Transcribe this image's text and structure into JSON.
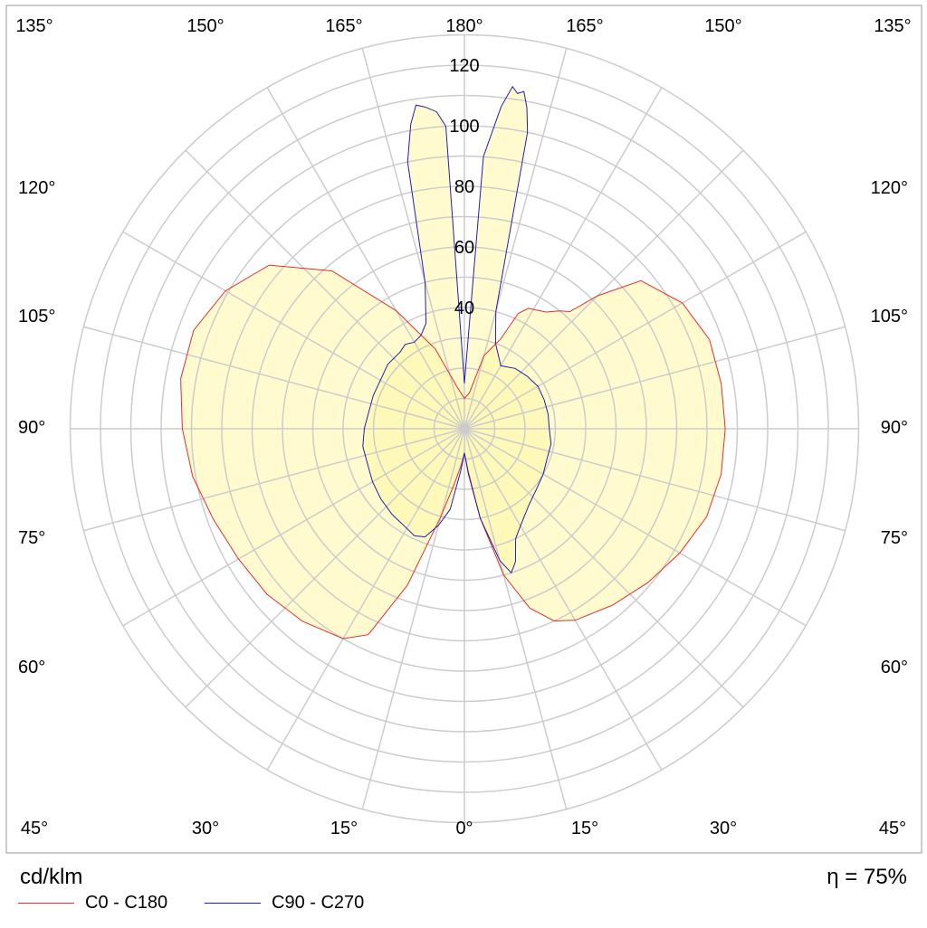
{
  "chart_data": {
    "type": "polar",
    "unit": "cd/klm",
    "efficiency_label": "η = 75%",
    "radial_ticks": [
      "40",
      "60",
      "80",
      "100",
      "120"
    ],
    "radial_tick_values": [
      40,
      60,
      80,
      100,
      120
    ],
    "rlim": [
      0,
      130
    ],
    "angle_labels": {
      "bottom": [
        "45°",
        "30°",
        "15°",
        "0°",
        "15°",
        "30°",
        "45°"
      ],
      "top": [
        "135°",
        "150°",
        "165°",
        "180°",
        "165°",
        "150°",
        "135°"
      ],
      "left": [
        "120°",
        "105°",
        "90°",
        "75°",
        "60°"
      ],
      "right": [
        "120°",
        "105°",
        "90°",
        "75°",
        "60°"
      ]
    },
    "grid": true,
    "series": [
      {
        "name": "C0 - C180",
        "color": "#e03030",
        "left": [
          [
            0,
            8
          ],
          [
            5,
            12
          ],
          [
            10,
            18
          ],
          [
            15,
            30
          ],
          [
            20,
            55
          ],
          [
            25,
            75
          ],
          [
            30,
            80
          ],
          [
            40,
            83
          ],
          [
            50,
            85
          ],
          [
            60,
            86
          ],
          [
            70,
            88
          ],
          [
            80,
            91
          ],
          [
            90,
            93
          ],
          [
            100,
            95
          ],
          [
            110,
            95
          ],
          [
            120,
            91
          ],
          [
            130,
            84
          ],
          [
            140,
            68
          ],
          [
            150,
            45
          ],
          [
            160,
            28
          ],
          [
            170,
            14
          ],
          [
            180,
            10
          ]
        ],
        "right": [
          [
            0,
            8
          ],
          [
            5,
            14
          ],
          [
            10,
            30
          ],
          [
            15,
            50
          ],
          [
            20,
            63
          ],
          [
            25,
            70
          ],
          [
            30,
            73
          ],
          [
            40,
            76
          ],
          [
            50,
            79
          ],
          [
            60,
            82
          ],
          [
            70,
            85
          ],
          [
            80,
            86
          ],
          [
            90,
            86
          ],
          [
            100,
            86
          ],
          [
            110,
            86
          ],
          [
            120,
            83
          ],
          [
            130,
            76
          ],
          [
            135,
            62
          ],
          [
            138,
            52
          ],
          [
            141,
            50
          ],
          [
            145,
            47
          ],
          [
            148,
            46
          ],
          [
            152,
            45
          ],
          [
            155,
            42
          ],
          [
            158,
            32
          ],
          [
            165,
            25
          ],
          [
            172,
            12
          ],
          [
            180,
            10
          ]
        ]
      },
      {
        "name": "C90 - C270",
        "color": "#2020b0",
        "left": [
          [
            0,
            8
          ],
          [
            5,
            14
          ],
          [
            10,
            27
          ],
          [
            15,
            33
          ],
          [
            20,
            38
          ],
          [
            25,
            39
          ],
          [
            30,
            38
          ],
          [
            40,
            37
          ],
          [
            50,
            36
          ],
          [
            60,
            35
          ],
          [
            70,
            34
          ],
          [
            80,
            34
          ],
          [
            90,
            33
          ],
          [
            100,
            32
          ],
          [
            110,
            32
          ],
          [
            120,
            32
          ],
          [
            130,
            33
          ],
          [
            140,
            33
          ],
          [
            145,
            34
          ],
          [
            150,
            33
          ],
          [
            155,
            34
          ],
          [
            160,
            37
          ],
          [
            165,
            50
          ],
          [
            168,
            90
          ],
          [
            170,
            102
          ],
          [
            171.5,
            108
          ],
          [
            173,
            107
          ],
          [
            175,
            105
          ],
          [
            176.5,
            100
          ],
          [
            180,
            15
          ]
        ],
        "right": [
          [
            0,
            8
          ],
          [
            5,
            15
          ],
          [
            10,
            30
          ],
          [
            15,
            45
          ],
          [
            18,
            50
          ],
          [
            21,
            47
          ],
          [
            25,
            40
          ],
          [
            30,
            37
          ],
          [
            40,
            33
          ],
          [
            50,
            31
          ],
          [
            60,
            30
          ],
          [
            70,
            29
          ],
          [
            80,
            29
          ],
          [
            90,
            28
          ],
          [
            100,
            28
          ],
          [
            110,
            28
          ],
          [
            120,
            28
          ],
          [
            130,
            27
          ],
          [
            140,
            26
          ],
          [
            150,
            24
          ],
          [
            160,
            30
          ],
          [
            165,
            40
          ],
          [
            168,
            100
          ],
          [
            169,
            108
          ],
          [
            170,
            113
          ],
          [
            171,
            112
          ],
          [
            172,
            114
          ],
          [
            173.5,
            107
          ],
          [
            176,
            90
          ],
          [
            180,
            15
          ]
        ]
      }
    ]
  }
}
